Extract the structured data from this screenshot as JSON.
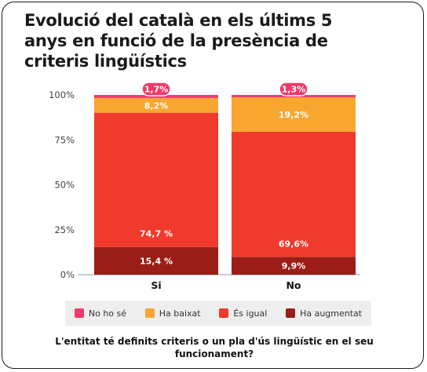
{
  "title": "Evolució del català en els últims 5 anys en funció de la presència de criteris lingüístics",
  "question": "L'entitat té definits criteris o un pla d'ús lingüístic en el seu funcionament?",
  "legend": [
    {
      "label": "No ho sé",
      "color": "#f03a6a"
    },
    {
      "label": "Ha baixat",
      "color": "#f8a630"
    },
    {
      "label": "És igual",
      "color": "#ef3a2c"
    },
    {
      "label": "Ha augmentat",
      "color": "#9a1e17"
    }
  ],
  "chart_data": {
    "type": "bar",
    "stacked": true,
    "categories": [
      "Si",
      "No"
    ],
    "ylim": [
      0,
      100
    ],
    "yticks": [
      "0%",
      "25%",
      "50%",
      "75%",
      "100%"
    ],
    "series": [
      {
        "name": "Ha augmentat",
        "color": "#9a1e17",
        "values": [
          15.4,
          9.9
        ],
        "labels": [
          "15,4 %",
          "9,9%"
        ]
      },
      {
        "name": "És igual",
        "color": "#ef3a2c",
        "values": [
          74.7,
          69.6
        ],
        "labels": [
          "74,7 %",
          "69,6%"
        ]
      },
      {
        "name": "Ha baixat",
        "color": "#f8a630",
        "values": [
          8.2,
          19.2
        ],
        "labels": [
          "8,2%",
          "19,2%"
        ]
      },
      {
        "name": "No ho sé",
        "color": "#f03a6a",
        "values": [
          1.7,
          1.3
        ],
        "labels": [
          "1,7%",
          "1,3%"
        ]
      }
    ]
  }
}
